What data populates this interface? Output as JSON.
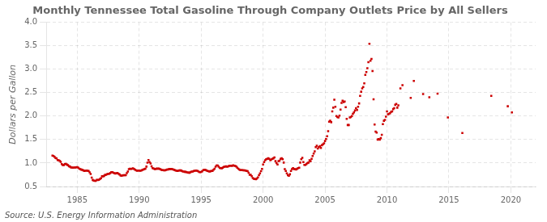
{
  "chart_data": {
    "type": "scatter",
    "title": "Monthly Tennessee Total Gasoline Through Company Outlets Price by All Sellers",
    "ylabel": "Dollars per Gallon",
    "annotations": [
      "Source: U.S. Energy Information Administration"
    ],
    "color": "#CC0000",
    "marker": "square",
    "grid": true,
    "xlim": [
      1982.5,
      2022
    ],
    "ylim": [
      0.5,
      4.0
    ],
    "xticks": [
      1985,
      1990,
      1995,
      2000,
      2005,
      2010,
      2015,
      2020
    ],
    "yticks": [
      0.5,
      {
        "value": 1.0,
        "label": "1.0"
      },
      1.5,
      {
        "value": 2.0,
        "label": "2.0"
      },
      2.5,
      {
        "value": 3.0,
        "label": "3.0"
      },
      3.5,
      {
        "value": 4.0,
        "label": "4.0"
      }
    ],
    "x": [
      1983.0,
      1983.083,
      1983.167,
      1983.25,
      1983.333,
      1983.417,
      1983.5,
      1983.583,
      1983.667,
      1983.75,
      1983.833,
      1983.917,
      1984.0,
      1984.083,
      1984.167,
      1984.25,
      1984.333,
      1984.417,
      1984.5,
      1984.583,
      1984.667,
      1984.75,
      1984.833,
      1984.917,
      1985.0,
      1985.083,
      1985.167,
      1985.25,
      1985.333,
      1985.417,
      1985.5,
      1985.583,
      1985.667,
      1985.75,
      1985.833,
      1985.917,
      1986.0,
      1986.083,
      1986.167,
      1986.25,
      1986.333,
      1986.417,
      1986.5,
      1986.583,
      1986.667,
      1986.75,
      1986.833,
      1986.917,
      1987.0,
      1987.083,
      1987.167,
      1987.25,
      1987.333,
      1987.417,
      1987.5,
      1987.583,
      1987.667,
      1987.75,
      1987.833,
      1987.917,
      1988.0,
      1988.083,
      1988.167,
      1988.25,
      1988.333,
      1988.417,
      1988.5,
      1988.583,
      1988.667,
      1988.75,
      1988.833,
      1988.917,
      1989.0,
      1989.083,
      1989.167,
      1989.25,
      1989.333,
      1989.417,
      1989.5,
      1989.583,
      1989.667,
      1989.75,
      1989.833,
      1989.917,
      1990.0,
      1990.083,
      1990.167,
      1990.25,
      1990.333,
      1990.417,
      1990.5,
      1990.583,
      1990.667,
      1990.75,
      1990.833,
      1990.917,
      1991.0,
      1991.083,
      1991.167,
      1991.25,
      1991.333,
      1991.417,
      1991.5,
      1991.583,
      1991.667,
      1991.75,
      1991.833,
      1991.917,
      1992.0,
      1992.083,
      1992.167,
      1992.25,
      1992.333,
      1992.417,
      1992.5,
      1992.583,
      1992.667,
      1992.75,
      1992.833,
      1992.917,
      1993.0,
      1993.083,
      1993.167,
      1993.25,
      1993.333,
      1993.417,
      1993.5,
      1993.583,
      1993.667,
      1993.75,
      1993.833,
      1993.917,
      1994.0,
      1994.083,
      1994.167,
      1994.25,
      1994.333,
      1994.417,
      1994.5,
      1994.583,
      1994.667,
      1994.75,
      1994.833,
      1994.917,
      1995.0,
      1995.083,
      1995.167,
      1995.25,
      1995.333,
      1995.417,
      1995.5,
      1995.583,
      1995.667,
      1995.75,
      1995.833,
      1995.917,
      1996.0,
      1996.083,
      1996.167,
      1996.25,
      1996.333,
      1996.417,
      1996.5,
      1996.583,
      1996.667,
      1996.75,
      1996.833,
      1996.917,
      1997.0,
      1997.083,
      1997.167,
      1997.25,
      1997.333,
      1997.417,
      1997.5,
      1997.583,
      1997.667,
      1997.75,
      1997.833,
      1997.917,
      1998.0,
      1998.083,
      1998.167,
      1998.25,
      1998.333,
      1998.417,
      1998.5,
      1998.583,
      1998.667,
      1998.75,
      1998.833,
      1998.917,
      1999.0,
      1999.083,
      1999.167,
      1999.25,
      1999.333,
      1999.417,
      1999.5,
      1999.583,
      1999.667,
      1999.75,
      1999.833,
      1999.917,
      2000.0,
      2000.083,
      2000.167,
      2000.25,
      2000.333,
      2000.417,
      2000.5,
      2000.583,
      2000.667,
      2000.75,
      2000.833,
      2000.917,
      2001.0,
      2001.083,
      2001.167,
      2001.25,
      2001.333,
      2001.417,
      2001.5,
      2001.583,
      2001.667,
      2001.75,
      2001.833,
      2001.917,
      2002.0,
      2002.083,
      2002.167,
      2002.25,
      2002.333,
      2002.417,
      2002.5,
      2002.583,
      2002.667,
      2002.75,
      2002.833,
      2002.917,
      2003.0,
      2003.083,
      2003.167,
      2003.25,
      2003.333,
      2003.417,
      2003.5,
      2003.583,
      2003.667,
      2003.75,
      2003.833,
      2003.917,
      2004.0,
      2004.083,
      2004.167,
      2004.25,
      2004.333,
      2004.417,
      2004.5,
      2004.583,
      2004.667,
      2004.75,
      2004.833,
      2004.917,
      2005.0,
      2005.083,
      2005.167,
      2005.25,
      2005.333,
      2005.417,
      2005.5,
      2005.583,
      2005.667,
      2005.75,
      2005.833,
      2005.917,
      2006.0,
      2006.083,
      2006.167,
      2006.25,
      2006.333,
      2006.417,
      2006.5,
      2006.583,
      2006.667,
      2006.75,
      2006.833,
      2006.917,
      2007.0,
      2007.083,
      2007.167,
      2007.25,
      2007.333,
      2007.417,
      2007.5,
      2007.583,
      2007.667,
      2007.75,
      2007.833,
      2007.917,
      2008.0,
      2008.083,
      2008.167,
      2008.25,
      2008.333,
      2008.417,
      2008.5,
      2008.583,
      2008.667,
      2008.75,
      2008.833,
      2008.917,
      2009.0,
      2009.083,
      2009.167,
      2009.25,
      2009.333,
      2009.417,
      2009.5,
      2009.583,
      2009.667,
      2009.75,
      2009.833,
      2009.917,
      2010.0,
      2010.083,
      2010.167,
      2010.25,
      2010.333,
      2010.417,
      2010.5,
      2010.583,
      2010.667,
      2010.75,
      2010.833,
      2010.917,
      2011.083,
      2011.25,
      2011.917,
      2012.167,
      2012.917,
      2013.417,
      2014.083,
      2014.917,
      2016.083,
      2018.417,
      2019.75,
      2020.083
    ],
    "values": [
      1.157,
      1.149,
      1.132,
      1.107,
      1.098,
      1.065,
      1.059,
      1.048,
      1.025,
      0.977,
      0.958,
      0.957,
      0.977,
      0.982,
      0.967,
      0.954,
      0.932,
      0.924,
      0.906,
      0.904,
      0.901,
      0.905,
      0.903,
      0.91,
      0.913,
      0.9,
      0.877,
      0.87,
      0.859,
      0.854,
      0.842,
      0.833,
      0.837,
      0.84,
      0.835,
      0.831,
      0.8,
      0.765,
      0.69,
      0.64,
      0.625,
      0.62,
      0.62,
      0.643,
      0.638,
      0.643,
      0.66,
      0.678,
      0.717,
      0.716,
      0.726,
      0.747,
      0.749,
      0.762,
      0.771,
      0.772,
      0.786,
      0.805,
      0.804,
      0.791,
      0.783,
      0.776,
      0.784,
      0.789,
      0.772,
      0.756,
      0.734,
      0.73,
      0.737,
      0.742,
      0.74,
      0.742,
      0.783,
      0.817,
      0.869,
      0.877,
      0.873,
      0.88,
      0.885,
      0.876,
      0.858,
      0.845,
      0.835,
      0.84,
      0.839,
      0.836,
      0.841,
      0.851,
      0.86,
      0.869,
      0.877,
      0.924,
      1.009,
      1.063,
      1.019,
      0.99,
      0.93,
      0.892,
      0.882,
      0.872,
      0.876,
      0.881,
      0.878,
      0.881,
      0.875,
      0.863,
      0.85,
      0.85,
      0.843,
      0.843,
      0.851,
      0.862,
      0.862,
      0.875,
      0.871,
      0.875,
      0.87,
      0.862,
      0.855,
      0.843,
      0.834,
      0.832,
      0.835,
      0.843,
      0.842,
      0.838,
      0.822,
      0.818,
      0.812,
      0.812,
      0.806,
      0.797,
      0.795,
      0.795,
      0.809,
      0.82,
      0.818,
      0.832,
      0.836,
      0.84,
      0.836,
      0.826,
      0.81,
      0.805,
      0.808,
      0.822,
      0.85,
      0.857,
      0.855,
      0.845,
      0.833,
      0.826,
      0.817,
      0.825,
      0.831,
      0.832,
      0.857,
      0.877,
      0.921,
      0.947,
      0.948,
      0.923,
      0.895,
      0.893,
      0.889,
      0.902,
      0.917,
      0.921,
      0.929,
      0.92,
      0.927,
      0.94,
      0.944,
      0.944,
      0.94,
      0.95,
      0.944,
      0.938,
      0.927,
      0.9,
      0.879,
      0.863,
      0.848,
      0.85,
      0.847,
      0.845,
      0.844,
      0.84,
      0.831,
      0.826,
      0.793,
      0.749,
      0.75,
      0.72,
      0.68,
      0.665,
      0.66,
      0.655,
      0.67,
      0.695,
      0.74,
      0.78,
      0.827,
      0.875,
      0.97,
      1.02,
      1.06,
      1.08,
      1.09,
      1.1,
      1.09,
      1.06,
      1.075,
      1.09,
      1.1,
      1.12,
      1.04,
      1.0,
      0.97,
      1.04,
      1.05,
      1.09,
      1.1,
      1.08,
      1.01,
      0.87,
      0.83,
      0.78,
      0.74,
      0.73,
      0.76,
      0.83,
      0.87,
      0.89,
      0.87,
      0.87,
      0.86,
      0.88,
      0.89,
      0.9,
      1.01,
      1.08,
      1.11,
      1.02,
      0.96,
      0.96,
      0.98,
      1.0,
      1.01,
      1.06,
      1.04,
      1.09,
      1.15,
      1.2,
      1.25,
      1.34,
      1.37,
      1.31,
      1.34,
      1.36,
      1.32,
      1.38,
      1.4,
      1.42,
      1.47,
      1.51,
      1.57,
      1.68,
      1.88,
      1.9,
      1.87,
      2.1,
      2.18,
      2.35,
      2.2,
      2.0,
      1.98,
      1.97,
      2.01,
      2.14,
      2.28,
      2.33,
      2.3,
      2.31,
      2.19,
      1.94,
      1.81,
      1.81,
      1.97,
      1.98,
      2.0,
      2.05,
      2.08,
      2.12,
      2.17,
      2.13,
      2.2,
      2.27,
      2.43,
      2.52,
      2.59,
      2.62,
      2.7,
      2.88,
      2.94,
      3.02,
      3.15,
      3.54,
      3.18,
      3.22,
      2.96,
      2.36,
      1.82,
      1.67,
      1.65,
      1.5,
      1.51,
      1.5,
      1.53,
      1.6,
      1.83,
      1.9,
      1.92,
      1.99,
      2.1,
      2.04,
      2.05,
      2.06,
      2.09,
      2.1,
      2.15,
      2.17,
      2.24,
      2.26,
      2.18,
      2.23,
      2.59,
      2.66,
      2.39,
      2.75,
      2.47,
      2.4,
      2.48,
      1.97,
      1.64,
      2.43,
      2.21,
      2.08
    ]
  }
}
